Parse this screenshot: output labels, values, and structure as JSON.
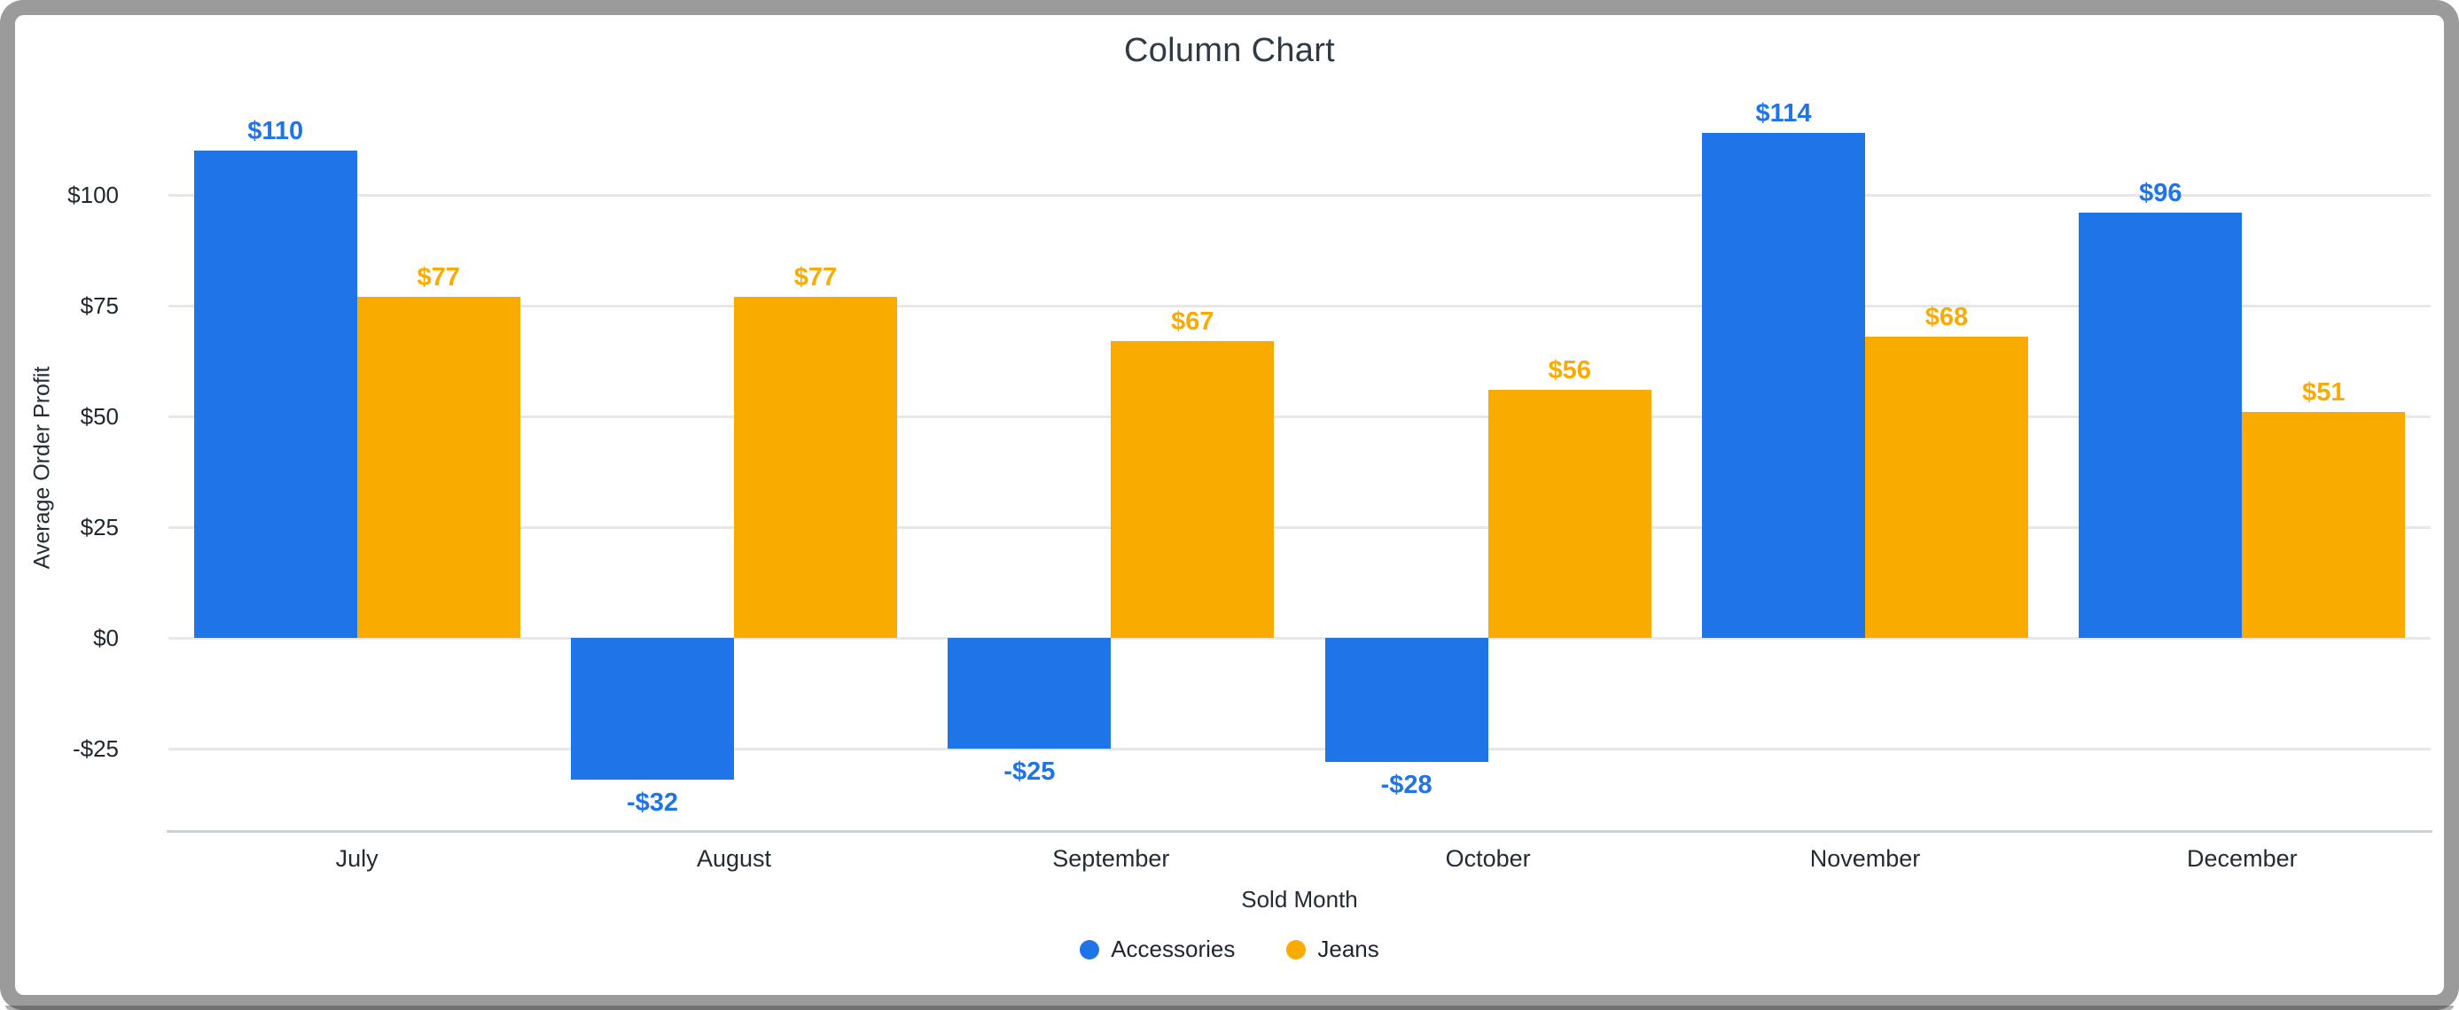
{
  "chart_data": {
    "type": "bar",
    "title": "Column Chart",
    "xlabel": "Sold Month",
    "ylabel": "Average Order Profit",
    "categories": [
      "July",
      "August",
      "September",
      "October",
      "November",
      "December"
    ],
    "series": [
      {
        "name": "Accessories",
        "color": "#1f74e8",
        "values": [
          110,
          -32,
          -25,
          -28,
          114,
          96
        ],
        "data_labels": [
          "$110",
          "-$32",
          "-$25",
          "-$28",
          "$114",
          "$96"
        ]
      },
      {
        "name": "Jeans",
        "color": "#f9ab00",
        "values": [
          77,
          77,
          67,
          56,
          68,
          51
        ],
        "data_labels": [
          "$77",
          "$77",
          "$67",
          "$56",
          "$68",
          "$51"
        ]
      }
    ],
    "y_axis": {
      "ticks": [
        {
          "value": 100,
          "label": "$100"
        },
        {
          "value": 75,
          "label": "$75"
        },
        {
          "value": 50,
          "label": "$50"
        },
        {
          "value": 25,
          "label": "$25"
        },
        {
          "value": 0,
          "label": "$0"
        },
        {
          "value": -25,
          "label": "-$25"
        }
      ]
    },
    "ylim": [
      -44,
      122
    ],
    "grid": true,
    "legend_position": "bottom"
  },
  "style": {
    "series_blue": "#1f74e8",
    "series_orange": "#f9ab00",
    "grid_color": "#e7e7e7",
    "axis_line_color": "#c8d3e0",
    "text_color": "#21272e",
    "title_color": "#303a45",
    "frame_border_color": "#9b9b9b",
    "background": "#ffffff"
  }
}
